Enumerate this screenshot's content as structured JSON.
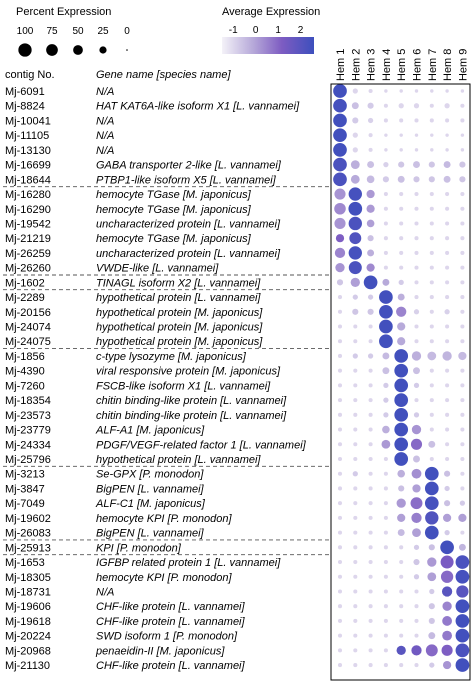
{
  "chart_data": {
    "type": "dotplot",
    "size_legend": {
      "title": "Percent Expression",
      "labels": [
        "100",
        "75",
        "50",
        "25",
        "0"
      ],
      "values": [
        100,
        75,
        50,
        25,
        0
      ]
    },
    "color_legend": {
      "title": "Average Expression",
      "ticks": [
        "-1",
        "0",
        "1",
        "2"
      ],
      "range": [
        -1.5,
        2.6
      ],
      "colors": [
        "#f4f2f8",
        "#b4a6d8",
        "#7d5cc2",
        "#3d4fbd"
      ]
    },
    "columns_header": {
      "contig": "contig No.",
      "gene": "Gene name [species name]"
    },
    "clusters": [
      "Hem 1",
      "Hem 2",
      "Hem 3",
      "Hem 4",
      "Hem 5",
      "Hem 6",
      "Hem 7",
      "Hem 8",
      "Hem 9"
    ],
    "groups": [
      {
        "rows": [
          {
            "contig": "Mj-6091",
            "gene": "N/A"
          },
          {
            "contig": "Mj-8824",
            "gene": "HAT KAT6A-like isoform X1 [L. vannamei]"
          },
          {
            "contig": "Mj-10041",
            "gene": "N/A"
          },
          {
            "contig": "Mj-11105",
            "gene": "N/A"
          },
          {
            "contig": "Mj-13130",
            "gene": "N/A"
          },
          {
            "contig": "Mj-16699",
            "gene": "GABA transporter 2-like [L. vannamei]"
          },
          {
            "contig": "Mj-18644",
            "gene": "PTBP1-like isoform X5 [L. vannamei]"
          }
        ]
      },
      {
        "rows": [
          {
            "contig": "Mj-16280",
            "gene": "hemocyte TGase [M. japonicus]"
          },
          {
            "contig": "Mj-16290",
            "gene": "hemocyte TGase [M. japonicus]"
          },
          {
            "contig": "Mj-19542",
            "gene": "uncharacterized protein [L. vannamei]"
          },
          {
            "contig": "Mj-21219",
            "gene": "hemocyte TGase [M. japonicus]"
          },
          {
            "contig": "Mj-26259",
            "gene": "uncharacterized protein [L. vannamei]"
          },
          {
            "contig": "Mj-26260",
            "gene": "VWDE-like [L. vannamei]"
          }
        ]
      },
      {
        "rows": [
          {
            "contig": "Mj-1602",
            "gene": "TINAGL isoform X2 [L. vannamei]"
          }
        ]
      },
      {
        "rows": [
          {
            "contig": "Mj-2289",
            "gene": "hypothetical protein [L. vannamei]"
          },
          {
            "contig": "Mj-20156",
            "gene": "hypothetical protein [M. japonicus]"
          },
          {
            "contig": "Mj-24074",
            "gene": "hypothetical protein [M. japonicus]"
          },
          {
            "contig": "Mj-24075",
            "gene": "hypothetical protein [M. japonicus]"
          }
        ]
      },
      {
        "rows": [
          {
            "contig": "Mj-1856",
            "gene": "c-type lysozyme [M. japonicus]"
          },
          {
            "contig": "Mj-4390",
            "gene": "viral responsive protein [M. japonicus]"
          },
          {
            "contig": "Mj-7260",
            "gene": "FSCB-like isoform X1 [L. vannamei]"
          },
          {
            "contig": "Mj-18354",
            "gene": "chitin binding-like protein [L. vannamei]"
          },
          {
            "contig": "Mj-23573",
            "gene": "chitin binding-like protein [L. vannamei]"
          },
          {
            "contig": "Mj-23779",
            "gene": "ALF-A1 [M. japonicus]"
          },
          {
            "contig": "Mj-24334",
            "gene": "PDGF/VEGF-related factor 1 [L. vannamei]"
          },
          {
            "contig": "Mj-25796",
            "gene": "hypothetical protein [L. vannamei]"
          }
        ]
      },
      {
        "rows": [
          {
            "contig": "Mj-3213",
            "gene": "Se-GPX [P. monodon]"
          },
          {
            "contig": "Mj-3847",
            "gene": "BigPEN [L. vannamei]"
          },
          {
            "contig": "Mj-7049",
            "gene": "ALF-C1 [M. japonicus]"
          },
          {
            "contig": "Mj-19602",
            "gene": "hemocyte KPI [P. monodon]"
          },
          {
            "contig": "Mj-26083",
            "gene": "BigPEN [L. vannamei]"
          }
        ]
      },
      {
        "rows": [
          {
            "contig": "Mj-25913",
            "gene": "KPI [P. monodon]"
          }
        ]
      },
      {
        "rows": [
          {
            "contig": "Mj-1653",
            "gene": "IGFBP related protein 1 [L. vannamei]"
          },
          {
            "contig": "Mj-18305",
            "gene": "hemocyte KPI [P. monodon]"
          },
          {
            "contig": "Mj-18731",
            "gene": "N/A"
          },
          {
            "contig": "Mj-19606",
            "gene": "CHF-like protein [L. vannamei]"
          },
          {
            "contig": "Mj-19618",
            "gene": "CHF-like protein [L. vannamei]"
          },
          {
            "contig": "Mj-20224",
            "gene": "SWD isoform 1 [P. monodon]"
          },
          {
            "contig": "Mj-20968",
            "gene": "penaeidin-II [M. japonicus]"
          },
          {
            "contig": "Mj-21130",
            "gene": "CHF-like protein [L. vannamei]"
          }
        ]
      }
    ],
    "percent": [
      [
        95,
        10,
        5,
        3,
        3,
        3,
        3,
        3,
        3
      ],
      [
        95,
        20,
        15,
        5,
        10,
        10,
        5,
        10,
        5
      ],
      [
        95,
        15,
        10,
        5,
        5,
        5,
        5,
        5,
        5
      ],
      [
        95,
        10,
        5,
        3,
        3,
        3,
        3,
        3,
        3
      ],
      [
        95,
        10,
        5,
        3,
        3,
        3,
        3,
        3,
        3
      ],
      [
        95,
        35,
        20,
        10,
        15,
        20,
        15,
        20,
        15
      ],
      [
        95,
        35,
        25,
        15,
        20,
        15,
        15,
        20,
        15
      ],
      [
        60,
        90,
        30,
        5,
        5,
        5,
        5,
        5,
        5
      ],
      [
        65,
        95,
        30,
        5,
        5,
        5,
        5,
        5,
        5
      ],
      [
        60,
        90,
        25,
        5,
        5,
        5,
        5,
        5,
        5
      ],
      [
        30,
        70,
        15,
        5,
        5,
        5,
        5,
        5,
        5
      ],
      [
        50,
        90,
        20,
        5,
        5,
        5,
        5,
        5,
        5
      ],
      [
        40,
        85,
        30,
        5,
        5,
        5,
        5,
        5,
        5
      ],
      [
        15,
        40,
        95,
        20,
        10,
        5,
        5,
        5,
        5
      ],
      [
        5,
        10,
        10,
        95,
        20,
        5,
        5,
        5,
        5
      ],
      [
        5,
        15,
        15,
        95,
        50,
        10,
        5,
        10,
        5
      ],
      [
        5,
        5,
        5,
        95,
        30,
        5,
        5,
        5,
        5
      ],
      [
        5,
        5,
        5,
        95,
        30,
        5,
        5,
        5,
        5
      ],
      [
        5,
        10,
        10,
        20,
        95,
        40,
        35,
        40,
        30
      ],
      [
        5,
        5,
        5,
        20,
        95,
        20,
        5,
        5,
        5
      ],
      [
        5,
        5,
        5,
        10,
        95,
        10,
        5,
        5,
        5
      ],
      [
        5,
        5,
        5,
        10,
        95,
        5,
        5,
        5,
        5
      ],
      [
        5,
        5,
        5,
        10,
        95,
        10,
        5,
        5,
        5
      ],
      [
        5,
        5,
        5,
        25,
        95,
        40,
        5,
        5,
        5
      ],
      [
        5,
        5,
        5,
        35,
        95,
        60,
        20,
        5,
        5
      ],
      [
        5,
        5,
        5,
        5,
        95,
        20,
        5,
        5,
        5
      ],
      [
        5,
        10,
        5,
        5,
        25,
        45,
        95,
        15,
        5
      ],
      [
        5,
        5,
        5,
        5,
        15,
        30,
        95,
        10,
        5
      ],
      [
        5,
        5,
        5,
        5,
        40,
        70,
        95,
        15,
        10
      ],
      [
        5,
        5,
        5,
        5,
        30,
        50,
        90,
        30,
        30
      ],
      [
        5,
        5,
        5,
        5,
        20,
        35,
        95,
        10,
        5
      ],
      [
        5,
        5,
        5,
        5,
        5,
        10,
        15,
        95,
        20
      ],
      [
        5,
        5,
        5,
        5,
        5,
        15,
        40,
        85,
        95
      ],
      [
        5,
        5,
        5,
        5,
        5,
        10,
        35,
        75,
        95
      ],
      [
        5,
        5,
        5,
        5,
        5,
        5,
        10,
        50,
        75
      ],
      [
        5,
        5,
        5,
        5,
        5,
        5,
        15,
        40,
        95
      ],
      [
        5,
        5,
        5,
        5,
        5,
        5,
        15,
        45,
        95
      ],
      [
        5,
        5,
        5,
        5,
        5,
        5,
        20,
        45,
        95
      ],
      [
        5,
        5,
        5,
        5,
        40,
        50,
        70,
        60,
        95
      ],
      [
        5,
        5,
        5,
        5,
        5,
        5,
        10,
        30,
        95
      ]
    ],
    "expression": [
      [
        2.5,
        -1,
        -1,
        -1,
        -1,
        -1,
        -1,
        -1,
        -1
      ],
      [
        2.4,
        -0.6,
        -0.8,
        -1,
        -1,
        -1,
        -1,
        -1,
        -1
      ],
      [
        2.5,
        -0.8,
        -0.9,
        -1,
        -1,
        -1,
        -1,
        -1,
        -1
      ],
      [
        2.5,
        -1,
        -1,
        -1,
        -1,
        -1,
        -1,
        -1,
        -1
      ],
      [
        2.5,
        -1,
        -1,
        -1,
        -1,
        -1,
        -1,
        -1,
        -1
      ],
      [
        2.3,
        -0.3,
        -0.6,
        -0.9,
        -0.7,
        -0.6,
        -0.7,
        -0.5,
        -0.7
      ],
      [
        2.3,
        -0.2,
        -0.5,
        -0.8,
        -0.6,
        -0.7,
        -0.7,
        -0.6,
        -0.7
      ],
      [
        0.2,
        2.4,
        0.1,
        -1,
        -1,
        -1,
        -1,
        -1,
        -1
      ],
      [
        0.4,
        2.5,
        0.1,
        -1,
        -1,
        -1,
        -1,
        -1,
        -1
      ],
      [
        0.2,
        2.3,
        0.0,
        -1,
        -1,
        -1,
        -1,
        -1,
        -1
      ],
      [
        1.2,
        2.2,
        -0.6,
        -1,
        -1,
        -1,
        -1,
        -1,
        -1
      ],
      [
        0.5,
        2.4,
        -0.3,
        -1,
        -1,
        -1,
        -1,
        -1,
        -1
      ],
      [
        0.2,
        2.3,
        0.4,
        -1,
        -1,
        -1,
        -1,
        -1,
        -1
      ],
      [
        -0.7,
        0.0,
        2.5,
        -0.2,
        -0.8,
        -1,
        -1,
        -1,
        -1
      ],
      [
        -1,
        -0.8,
        -0.8,
        2.5,
        -0.3,
        -1,
        -1,
        -1,
        -1
      ],
      [
        -1,
        -0.7,
        -0.7,
        2.5,
        0.5,
        -0.9,
        -1,
        -0.9,
        -1
      ],
      [
        -1,
        -1,
        -1,
        2.5,
        -0.2,
        -1,
        -1,
        -1,
        -1
      ],
      [
        -1,
        -1,
        -1,
        2.5,
        -0.2,
        -1,
        -1,
        -1,
        -1
      ],
      [
        -1,
        -0.8,
        -0.8,
        -0.5,
        2.5,
        -0.3,
        -0.5,
        -0.4,
        -0.5
      ],
      [
        -1,
        -1,
        -1,
        -0.6,
        2.5,
        -0.6,
        -1,
        -1,
        -1
      ],
      [
        -1,
        -1,
        -1,
        -0.8,
        2.5,
        -0.8,
        -1,
        -1,
        -1
      ],
      [
        -1,
        -1,
        -1,
        -0.8,
        2.5,
        -1,
        -1,
        -1,
        -1
      ],
      [
        -1,
        -1,
        -1,
        -0.8,
        2.5,
        -0.8,
        -1,
        -1,
        -1
      ],
      [
        -1,
        -1,
        -1,
        -0.3,
        2.5,
        0.2,
        -1,
        -1,
        -1
      ],
      [
        -1,
        -1,
        -1,
        0.1,
        2.5,
        1.0,
        -0.6,
        -1,
        -1
      ],
      [
        -1,
        -1,
        -1,
        -1,
        2.5,
        -0.6,
        -1,
        -1,
        -1
      ],
      [
        -1,
        -0.8,
        -1,
        -1,
        -0.3,
        0.3,
        2.5,
        -0.6,
        -1
      ],
      [
        -1,
        -1,
        -1,
        -1,
        -0.6,
        0.0,
        2.5,
        -0.8,
        -1
      ],
      [
        -1,
        -1,
        -1,
        -1,
        0.1,
        0.9,
        2.4,
        -0.6,
        -0.8
      ],
      [
        -1,
        -1,
        -1,
        -1,
        0.0,
        0.6,
        2.2,
        0.0,
        0.0
      ],
      [
        -1,
        -1,
        -1,
        -1,
        -0.5,
        0.0,
        2.5,
        -0.8,
        -1
      ],
      [
        -1,
        -1,
        -1,
        -1,
        -1,
        -0.8,
        -0.6,
        2.5,
        -0.4
      ],
      [
        -1,
        -1,
        -1,
        -1,
        -1,
        -0.7,
        0.1,
        1.3,
        2.3
      ],
      [
        -1,
        -1,
        -1,
        -1,
        -1,
        -0.8,
        0.0,
        1.0,
        2.4
      ],
      [
        -1,
        -1,
        -1,
        -1,
        -1,
        -1,
        -0.8,
        2.0,
        2.0
      ],
      [
        -1,
        -1,
        -1,
        -1,
        -1,
        -1,
        -0.7,
        0.5,
        2.5
      ],
      [
        -1,
        -1,
        -1,
        -1,
        -1,
        -1,
        -0.7,
        0.7,
        2.5
      ],
      [
        -1,
        -1,
        -1,
        -1,
        -1,
        -1,
        -0.5,
        0.7,
        2.5
      ],
      [
        -1,
        -1,
        -1,
        -1,
        2.0,
        1.5,
        1.0,
        1.2,
        2.3
      ],
      [
        -1,
        -1,
        -1,
        -1,
        -1,
        -1,
        -0.8,
        0.2,
        2.5
      ]
    ]
  }
}
